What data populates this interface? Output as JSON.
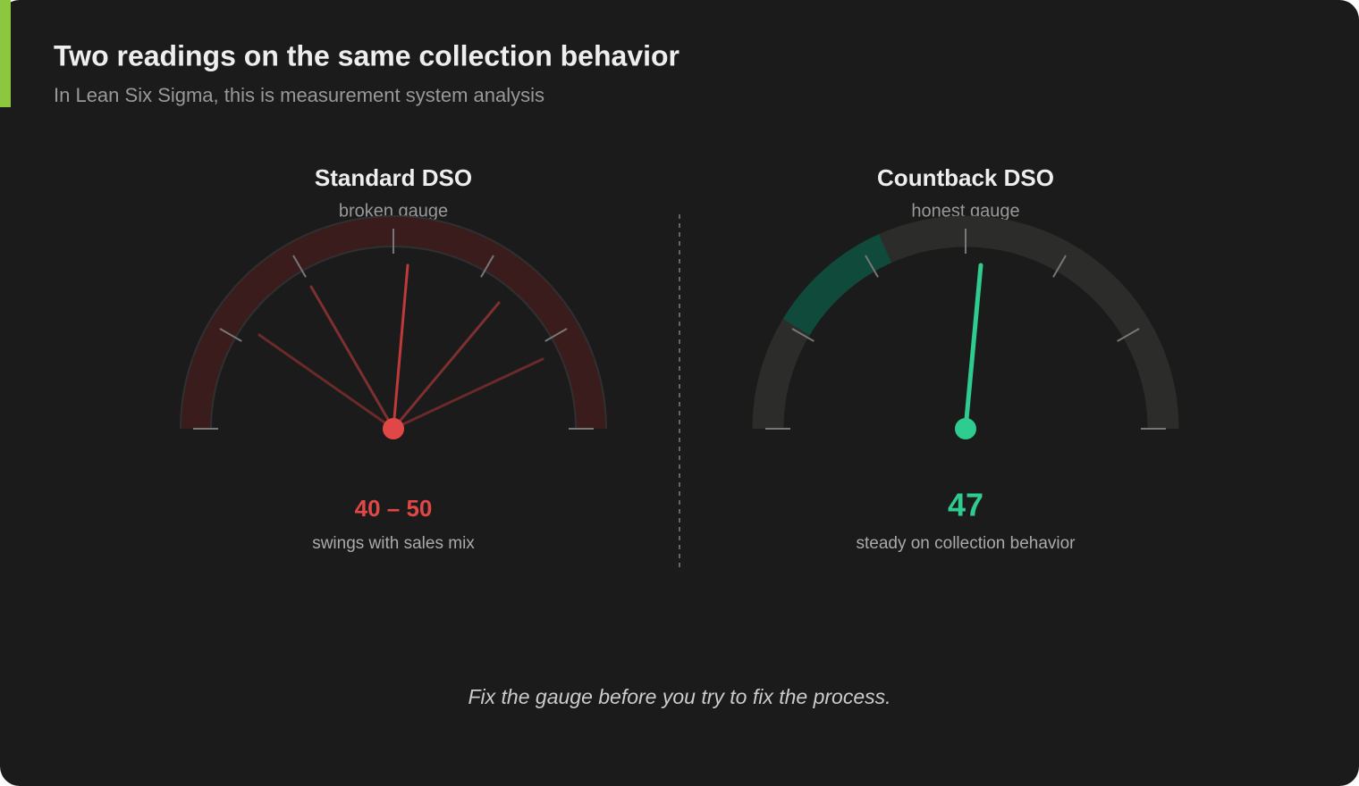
{
  "header": {
    "title": "Two readings on the same collection behavior",
    "subtitle": "In Lean Six Sigma, this is measurement system analysis"
  },
  "gauges": [
    {
      "title": "Standard DSO",
      "subtitle": "broken gauge",
      "reading": "40 – 50",
      "caption": "swings with sales mix"
    },
    {
      "title": "Countback DSO",
      "subtitle": "honest gauge",
      "reading": "47",
      "caption": "steady on collection behavior"
    }
  ],
  "footer": "Fix the gauge before you try to fix the process."
}
